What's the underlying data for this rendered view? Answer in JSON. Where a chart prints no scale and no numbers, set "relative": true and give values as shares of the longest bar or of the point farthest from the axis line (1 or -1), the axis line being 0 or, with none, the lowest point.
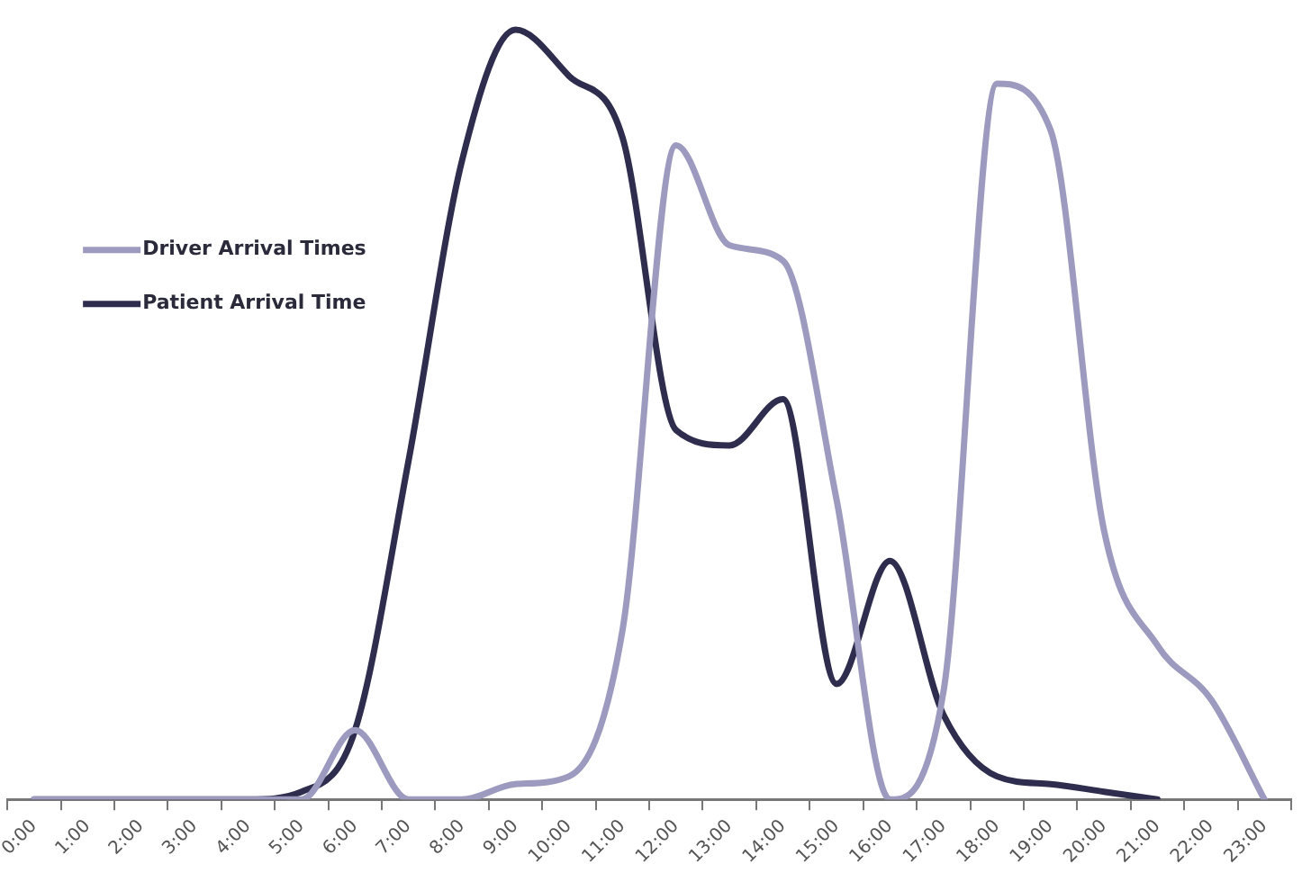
{
  "chart_data": {
    "type": "line",
    "relative": true,
    "categories": [
      "0:00",
      "1:00",
      "2:00",
      "3:00",
      "4:00",
      "5:00",
      "6:00",
      "7:00",
      "8:00",
      "9:00",
      "10:00",
      "11:00",
      "12:00",
      "13:00",
      "14:00",
      "15:00",
      "16:00",
      "17:00",
      "18:00",
      "19:00",
      "20:00",
      "21:00",
      "22:00",
      "23:00"
    ],
    "series": [
      {
        "name": "Driver Arrival Times",
        "color": "#9d9abf",
        "values": [
          0,
          0,
          0,
          0,
          0,
          0,
          0.09,
          0,
          0,
          0.02,
          0.03,
          0.22,
          0.85,
          0.72,
          0.7,
          0.39,
          0,
          0.14,
          0.93,
          0.87,
          0.35,
          0.2,
          0.13,
          0
        ]
      },
      {
        "name": "Patient Arrival Time",
        "color": "#2e2d4d",
        "values": [
          0,
          0,
          0,
          0,
          0,
          0.01,
          0.09,
          0.44,
          0.83,
          1,
          0.94,
          0.86,
          0.48,
          0.46,
          0.52,
          0.15,
          0.31,
          0.11,
          0.03,
          0.02,
          0.01,
          0,
          null,
          null
        ]
      }
    ],
    "legend": "left",
    "grid": false,
    "marker": "none",
    "line_style": "solid",
    "tick_labels": "x"
  }
}
